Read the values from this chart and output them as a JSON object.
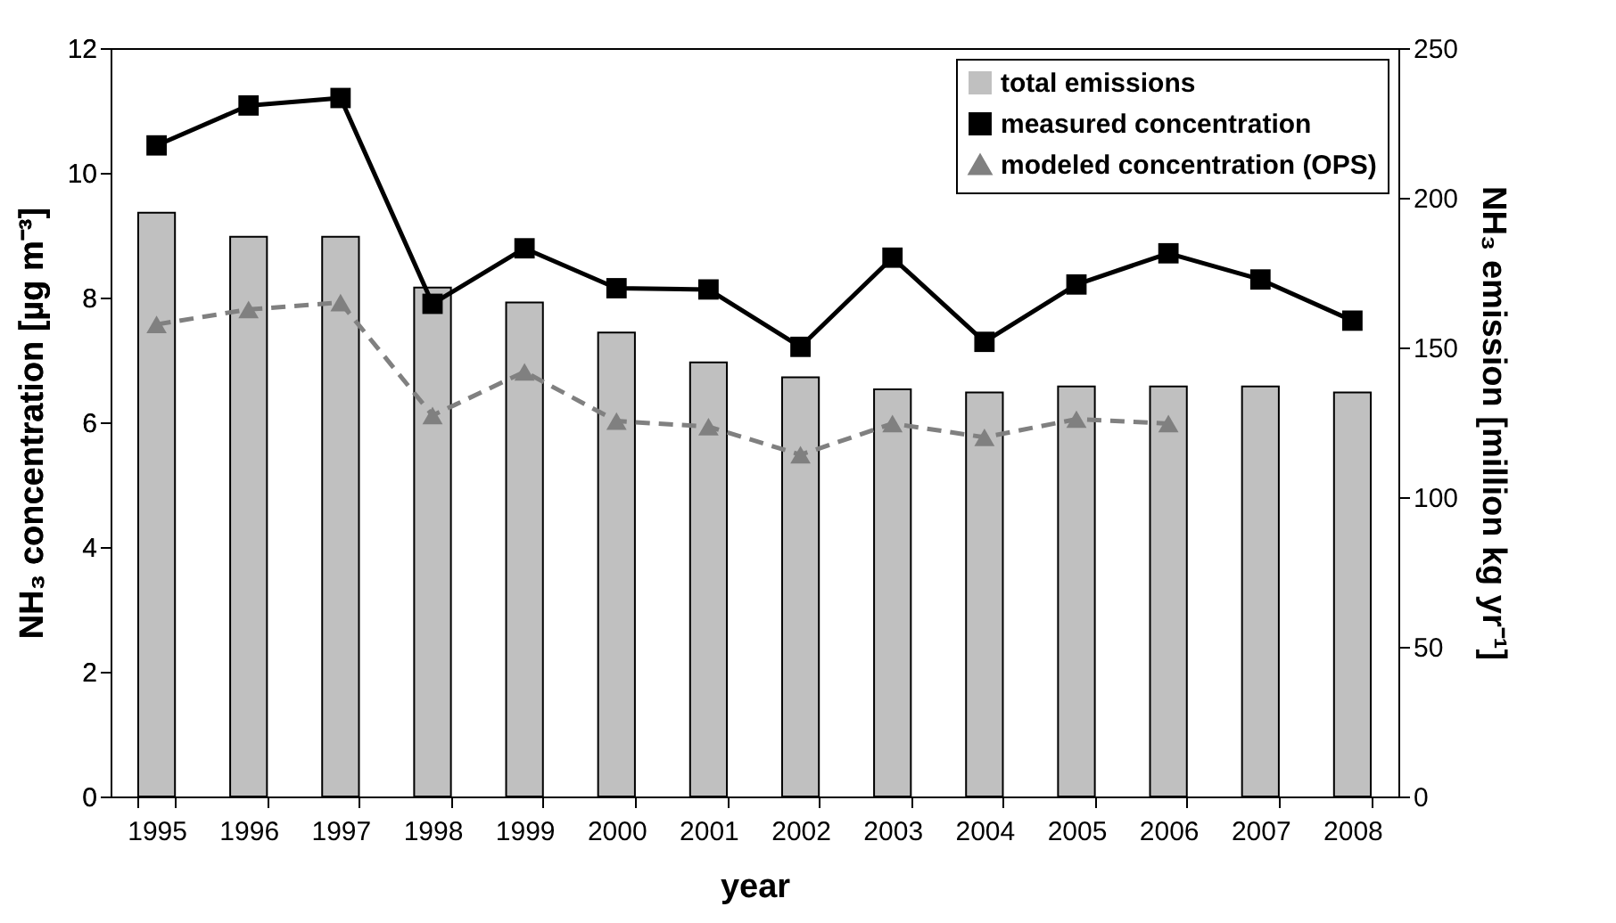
{
  "chart_data": {
    "type": "bar",
    "xlabel": "year",
    "ylabel": "NH₃ concentration [µg m⁻³]",
    "y2label": "NH₃ emission [million kg yr⁻¹]",
    "categories": [
      "1995",
      "1996",
      "1997",
      "1998",
      "1999",
      "2000",
      "2001",
      "2002",
      "2003",
      "2004",
      "2005",
      "2006",
      "2007",
      "2008"
    ],
    "series": [
      {
        "name": "total emissions",
        "axis": "y2",
        "color": "#c0c0c0",
        "values": [
          195,
          187,
          187,
          170,
          165,
          155,
          145,
          140,
          136,
          135,
          137,
          137,
          137,
          135
        ]
      },
      {
        "name": "measured concentration",
        "type": "line",
        "color": "#000000",
        "marker": "square",
        "line_style": "solid",
        "values": [
          10.44,
          11.08,
          11.2,
          7.9,
          8.79,
          8.15,
          8.13,
          7.21,
          8.64,
          7.29,
          8.21,
          8.71,
          8.29,
          7.63
        ]
      },
      {
        "name": "modeled concentration (OPS)",
        "type": "line",
        "color": "#808080",
        "marker": "triangle",
        "line_style": "dashed",
        "values": [
          7.57,
          7.81,
          7.92,
          6.11,
          6.81,
          6.02,
          5.93,
          5.48,
          5.98,
          5.76,
          6.05,
          5.98,
          null,
          null
        ]
      }
    ],
    "ylim": [
      0,
      12
    ],
    "yticks": [
      0,
      2,
      4,
      6,
      8,
      10,
      12
    ],
    "y2lim": [
      0,
      250
    ],
    "y2ticks": [
      0,
      50,
      100,
      150,
      200,
      250
    ],
    "grid": false,
    "legend": "top right"
  }
}
